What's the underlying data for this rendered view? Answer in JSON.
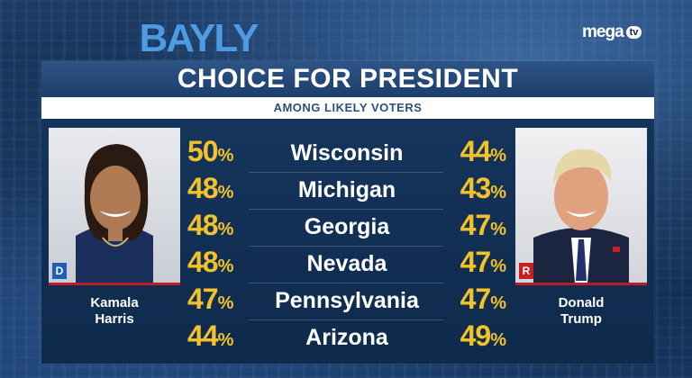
{
  "show_logo": "BAYLY",
  "network_logo": {
    "text": "mega",
    "badge": "tv"
  },
  "title": "CHOICE FOR PRESIDENT",
  "subtitle": "AMONG LIKELY VOTERS",
  "candidates": {
    "left": {
      "first": "Kamala",
      "last": "Harris",
      "party": "D",
      "party_color": "#1f5fb8"
    },
    "right": {
      "first": "Donald",
      "last": "Trump",
      "party": "R",
      "party_color": "#c81f27"
    }
  },
  "percent_symbol": "%",
  "rows": [
    {
      "state": "Wisconsin",
      "left": "50",
      "right": "44"
    },
    {
      "state": "Michigan",
      "left": "48",
      "right": "43"
    },
    {
      "state": "Georgia",
      "left": "48",
      "right": "47"
    },
    {
      "state": "Nevada",
      "left": "48",
      "right": "47"
    },
    {
      "state": "Pennsylvania",
      "left": "47",
      "right": "47"
    },
    {
      "state": "Arizona",
      "left": "44",
      "right": "49"
    }
  ],
  "colors": {
    "percent": "#f3c22b",
    "title_bar": "#2e5487",
    "accent_red": "#c01a24"
  }
}
